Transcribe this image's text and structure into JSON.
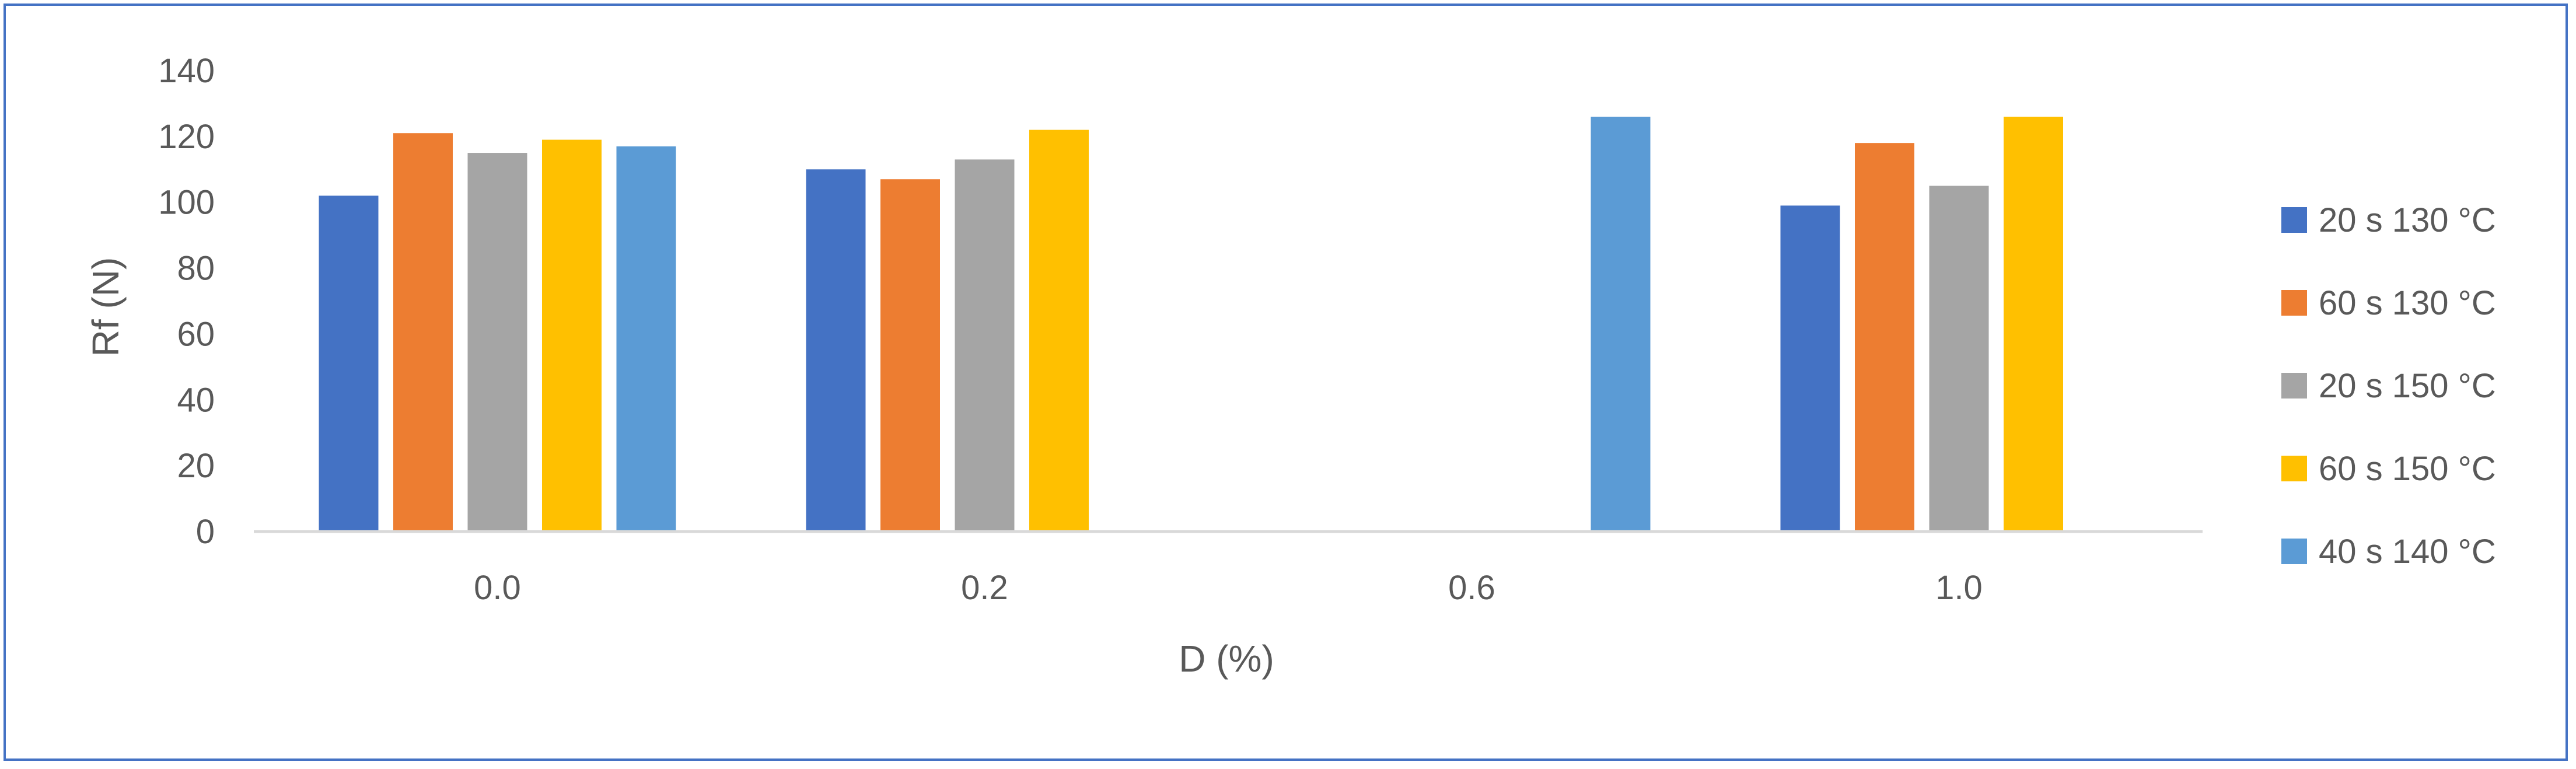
{
  "chart_data": {
    "type": "bar",
    "categories": [
      "0.0",
      "0.2",
      "0.6",
      "1.0"
    ],
    "series": [
      {
        "name": "20 s 130 °C",
        "color": "#4472C4",
        "values": [
          102,
          110,
          null,
          99
        ]
      },
      {
        "name": "60 s 130 °C",
        "color": "#ED7D31",
        "values": [
          121,
          107,
          null,
          118
        ]
      },
      {
        "name": "20 s 150 °C",
        "color": "#A5A5A5",
        "values": [
          115,
          113,
          null,
          105
        ]
      },
      {
        "name": "60 s 150 °C",
        "color": "#FFC000",
        "values": [
          119,
          122,
          null,
          126
        ]
      },
      {
        "name": "40 s 140 °C",
        "color": "#5B9BD5",
        "values": [
          117,
          null,
          126,
          null
        ]
      }
    ],
    "xlabel": "D (%)",
    "ylabel": "Rf (N)",
    "ylim": [
      0,
      140
    ],
    "yticks": [
      "0",
      "20",
      "40",
      "60",
      "80",
      "100",
      "120",
      "140"
    ],
    "grid": false,
    "legend_position": "right"
  }
}
